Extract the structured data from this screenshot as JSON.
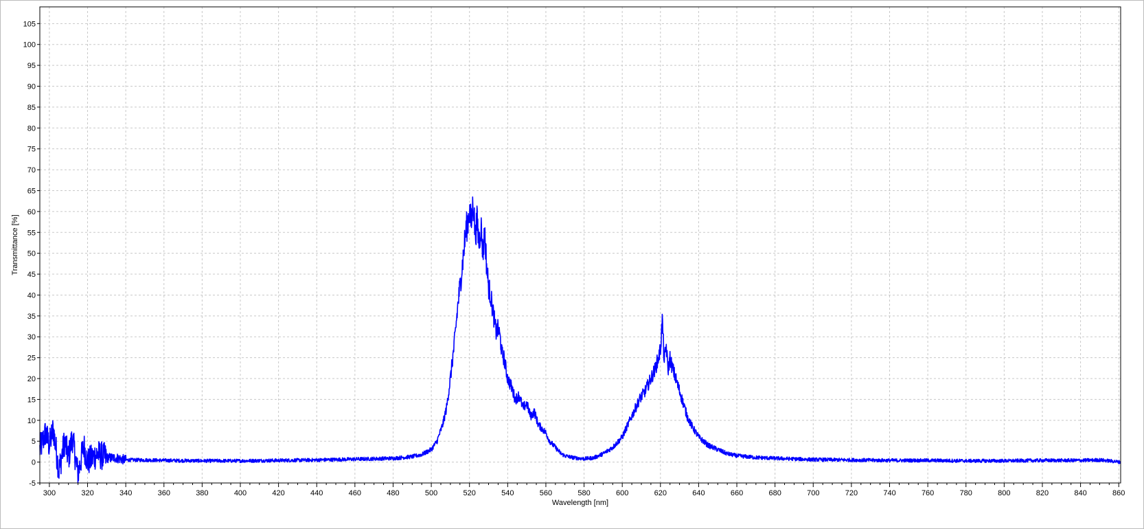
{
  "chart_data": {
    "type": "line",
    "title": "",
    "xlabel": "Wavelength [nm]",
    "ylabel": "Transmittance [%]",
    "xlim": [
      295,
      861
    ],
    "ylim": [
      -5,
      109
    ],
    "grid": true,
    "legend": "none",
    "x_ticks": [
      300,
      320,
      340,
      360,
      380,
      400,
      420,
      440,
      460,
      480,
      500,
      520,
      540,
      560,
      580,
      600,
      620,
      640,
      660,
      680,
      700,
      720,
      740,
      760,
      780,
      800,
      820,
      840,
      860
    ],
    "x_tick_labels": [
      "300",
      "320",
      "340",
      "360",
      "380",
      "400",
      "420",
      "440",
      "460",
      "480",
      "500",
      "520",
      "540",
      "560",
      "580",
      "600",
      "620",
      "640",
      "660",
      "680",
      "700",
      "720",
      "740",
      "760",
      "780",
      "800",
      "820",
      "840",
      "860"
    ],
    "y_ticks": [
      -5,
      0,
      5,
      10,
      15,
      20,
      25,
      30,
      35,
      40,
      45,
      50,
      55,
      60,
      65,
      70,
      75,
      80,
      85,
      90,
      95,
      100,
      105
    ],
    "y_tick_labels": [
      "-5",
      "0",
      "5",
      "10",
      "15",
      "20",
      "25",
      "30",
      "35",
      "40",
      "45",
      "50",
      "55",
      "60",
      "65",
      "70",
      "75",
      "80",
      "85",
      "90",
      "95",
      "100",
      "105"
    ],
    "series": [
      {
        "color": "#0000ff",
        "x": [
          295,
          298,
          300,
          302,
          305,
          308,
          310,
          312,
          315,
          318,
          320,
          325,
          330,
          335,
          340,
          350,
          360,
          380,
          400,
          420,
          440,
          460,
          480,
          490,
          495,
          500,
          503,
          506,
          508,
          510,
          512,
          514,
          516,
          518,
          520,
          521,
          522,
          523,
          524,
          525,
          526,
          527,
          528,
          529,
          530,
          531,
          532,
          533,
          534,
          535,
          536,
          537,
          538,
          540,
          542,
          544,
          546,
          548,
          550,
          552,
          554,
          556,
          558,
          560,
          562,
          564,
          566,
          568,
          570,
          575,
          580,
          585,
          590,
          595,
          600,
          603,
          606,
          609,
          612,
          615,
          617,
          619,
          620,
          621,
          622,
          623,
          624,
          625,
          626,
          628,
          630,
          632,
          634,
          636,
          640,
          645,
          650,
          655,
          660,
          670,
          680,
          700,
          720,
          740,
          760,
          780,
          800,
          820,
          840,
          850,
          855,
          861
        ],
        "y": [
          3,
          7,
          4,
          8,
          -2,
          5,
          1,
          6,
          -3,
          4,
          0,
          2,
          1,
          1,
          0.5,
          0.5,
          0.4,
          0.3,
          0.3,
          0.4,
          0.5,
          0.7,
          0.9,
          1.3,
          1.8,
          3,
          5,
          9,
          13,
          20,
          28,
          38,
          46,
          55,
          60,
          57,
          63,
          54,
          58,
          52,
          57,
          50,
          55,
          47,
          42,
          40,
          37,
          34,
          31,
          32,
          30,
          26,
          25,
          20,
          18,
          15,
          16,
          13,
          14,
          11,
          12,
          9,
          8,
          7,
          5,
          4,
          3,
          2,
          1.5,
          1,
          0.8,
          1,
          2,
          3.5,
          6,
          9,
          12,
          15,
          17,
          20,
          22,
          25,
          27,
          34,
          24,
          28,
          22,
          25,
          23,
          20,
          17,
          14,
          11,
          9,
          6,
          4,
          3,
          2,
          1.5,
          1.1,
          0.9,
          0.6,
          0.5,
          0.4,
          0.4,
          0.3,
          0.3,
          0.4,
          0.4,
          0.5,
          0.3,
          0
        ]
      }
    ]
  }
}
